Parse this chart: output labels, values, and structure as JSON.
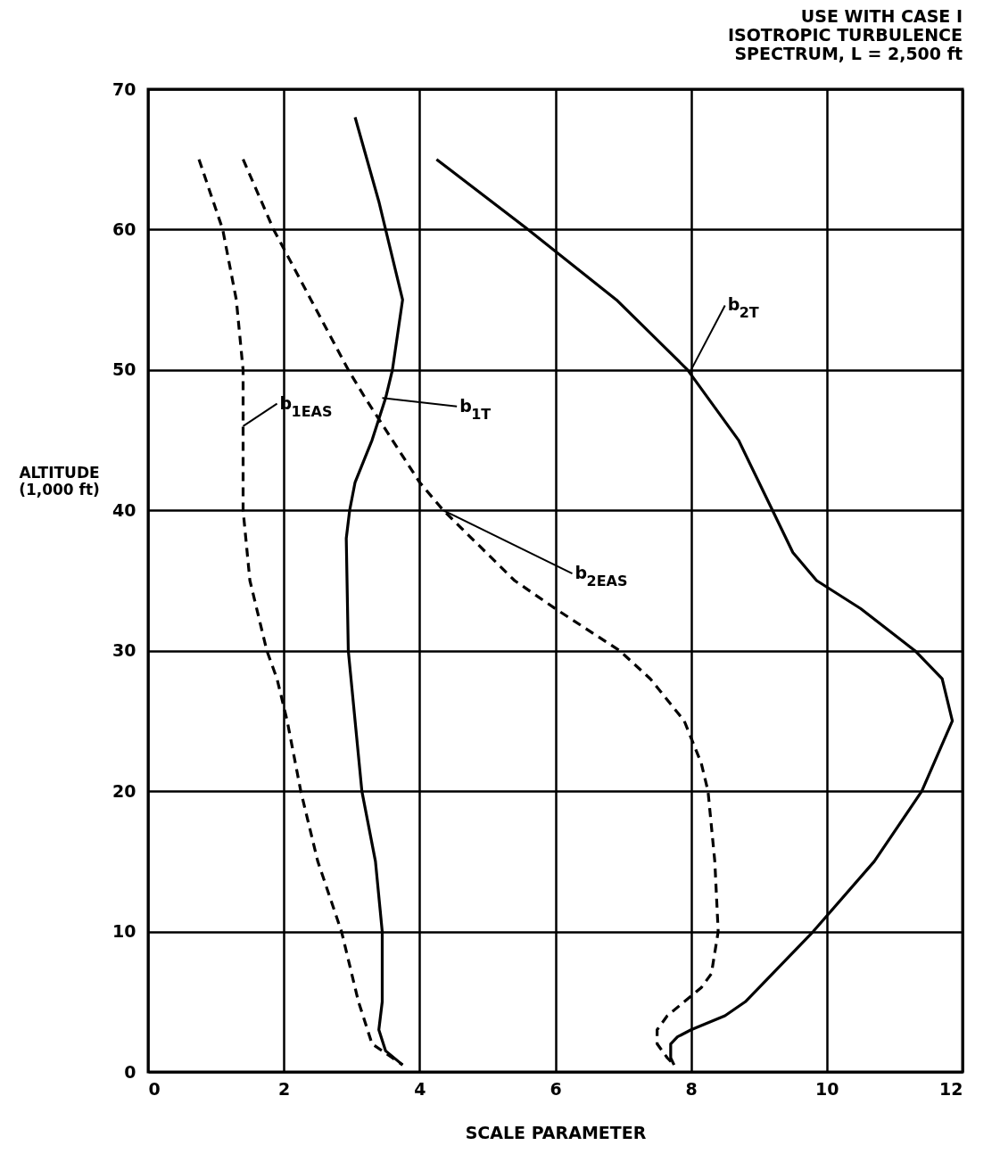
{
  "chart_data": {
    "type": "line",
    "title": "USE WITH CASE I\nISOTROPIC TURBULENCE\nSPECTRUM, L = 2,500 ft",
    "xlabel": "SCALE PARAMETER",
    "ylabel": "ALTITUDE\n(1,000 ft)",
    "xlim": [
      0,
      12
    ],
    "xticks": [
      0,
      2,
      4,
      6,
      8,
      10,
      12
    ],
    "ylim": [
      0,
      70
    ],
    "yticks": [
      0,
      10,
      20,
      30,
      40,
      50,
      60,
      70
    ],
    "grid": true,
    "series": [
      {
        "color": "#000000",
        "line_style": "dashed",
        "x": [
          0.75,
          1.1,
          1.3,
          1.4,
          1.4,
          1.4,
          1.5,
          1.75,
          1.9,
          2.05,
          2.25,
          2.5,
          2.85,
          3.1,
          3.3,
          3.6,
          3.75
        ],
        "values": [
          65,
          60,
          55,
          50,
          45,
          40,
          35,
          30,
          28,
          25,
          20,
          15,
          10,
          5,
          2,
          1,
          0.5
        ]
      },
      {
        "color": "#000000",
        "line_style": "solid",
        "x": [
          3.05,
          3.4,
          3.75,
          3.6,
          3.5,
          3.3,
          3.05,
          2.97,
          2.92,
          2.95,
          3.15,
          3.35,
          3.45,
          3.45,
          3.4,
          3.5,
          3.75
        ],
        "values": [
          68,
          62,
          55,
          50,
          48,
          45,
          42,
          40,
          38,
          30,
          20,
          15,
          10,
          5,
          3,
          1.5,
          0.5
        ]
      },
      {
        "color": "#000000",
        "line_style": "dashed",
        "x": [
          1.4,
          1.85,
          2.4,
          2.95,
          3.2,
          3.6,
          4.0,
          4.35,
          5.4,
          6.0,
          6.95,
          7.4,
          7.9,
          8.15,
          8.25,
          8.35,
          8.4,
          8.3,
          8.15,
          7.9,
          7.65,
          7.5,
          7.5,
          7.65,
          7.75
        ],
        "values": [
          65,
          60,
          55,
          50,
          48,
          45,
          42,
          40,
          35,
          33,
          30,
          28,
          25,
          22,
          20,
          15,
          10,
          7,
          6,
          5,
          4,
          3,
          2,
          1,
          0.5
        ]
      },
      {
        "color": "#000000",
        "line_style": "solid",
        "x": [
          4.25,
          5.6,
          6.9,
          7.95,
          8.7,
          9.2,
          9.5,
          9.85,
          10.5,
          11.3,
          11.7,
          11.85,
          11.4,
          10.7,
          9.8,
          8.8,
          8.5,
          8.0,
          7.8,
          7.7,
          7.7,
          7.75
        ],
        "values": [
          65,
          60,
          55,
          50,
          45,
          40,
          37,
          35,
          33,
          30,
          28,
          25,
          20,
          15,
          10,
          5,
          4,
          3,
          2.5,
          2,
          1,
          0.5
        ]
      }
    ],
    "annotations": [
      {
        "text": "b$_{1EAS}$",
        "x": 1.4,
        "y": 46
      },
      {
        "text": "b$_{1T}$",
        "x": 3.45,
        "y": 48
      },
      {
        "text": "b$_{2EAS}$",
        "x": 4.35,
        "y": 40
      },
      {
        "text": "b$_{2T}$",
        "x": 8.0,
        "y": 50
      }
    ]
  }
}
